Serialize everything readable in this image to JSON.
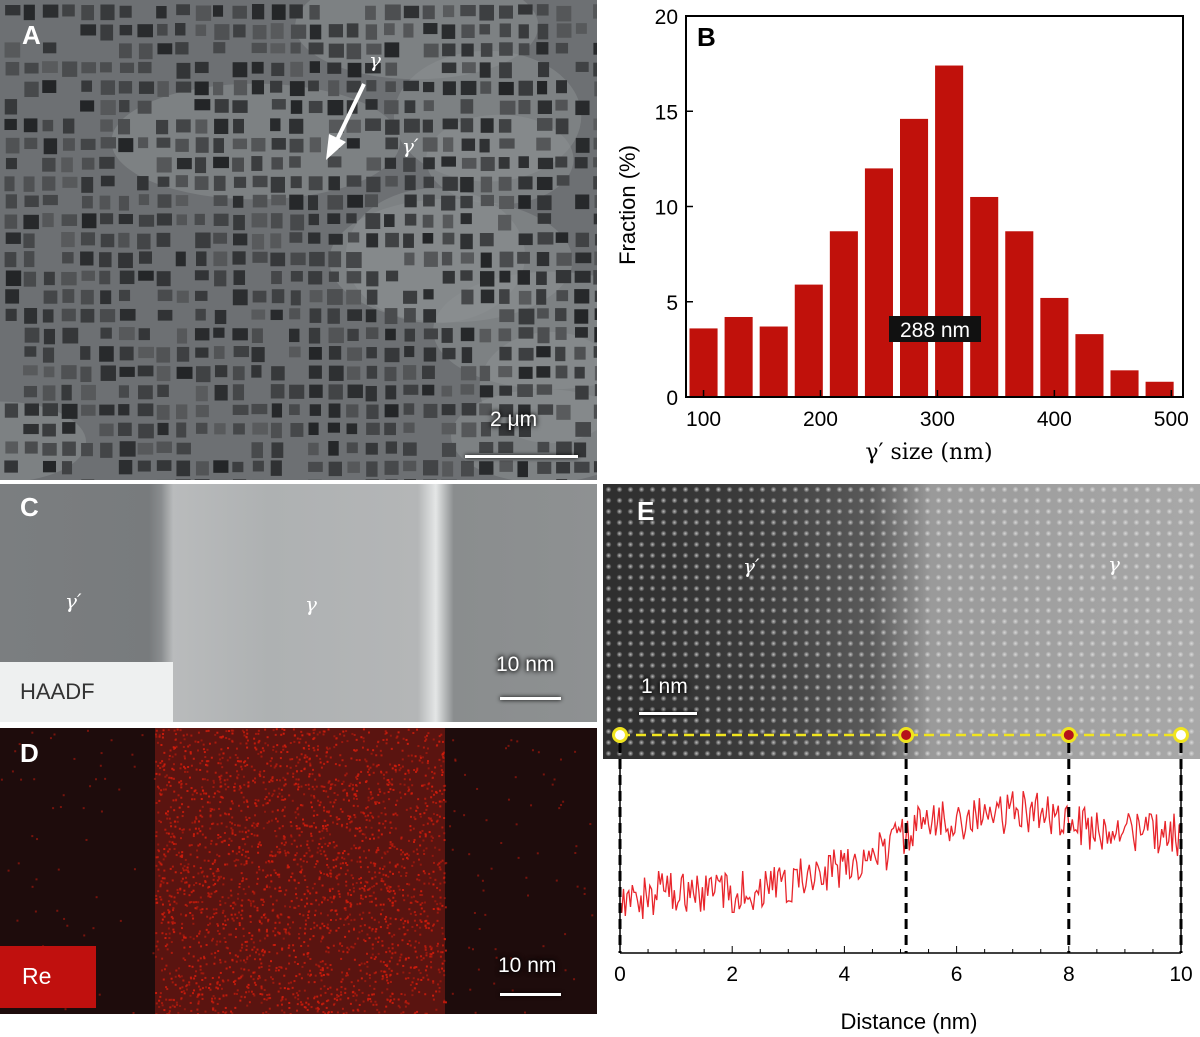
{
  "panels": {
    "a": {
      "label": "A",
      "gamma": "γ",
      "gamma_prime": "γ′",
      "scale": "2 μm"
    },
    "b": {
      "label": "B"
    },
    "c": {
      "label": "C",
      "gamma": "γ",
      "gamma_prime": "γ′",
      "mode": "HAADF",
      "scale": "10 nm"
    },
    "d": {
      "label": "D",
      "element": "Re",
      "scale": "10 nm",
      "map_color": "#d01c0c"
    },
    "e": {
      "label": "E",
      "gamma": "γ",
      "gamma_prime": "γ′",
      "scale": "1 nm"
    }
  },
  "chart_data": [
    {
      "type": "bar",
      "panel": "B",
      "xlabel": "γ′ size (nm)",
      "ylabel": "Fraction (%)",
      "annotation": "288 nm",
      "xlim": [
        85,
        510
      ],
      "ylim": [
        0,
        20
      ],
      "xticks": [
        100,
        200,
        300,
        400,
        500
      ],
      "yticks": [
        0,
        5,
        10,
        15,
        20
      ],
      "bar_width": 24,
      "color": "#c0110b",
      "x": [
        100,
        130,
        160,
        190,
        220,
        250,
        280,
        310,
        340,
        370,
        400,
        430,
        460,
        490
      ],
      "values": [
        3.6,
        4.2,
        3.7,
        5.9,
        8.7,
        12.0,
        14.6,
        17.4,
        10.5,
        8.7,
        5.2,
        3.3,
        1.4,
        0.8
      ]
    },
    {
      "type": "line",
      "panel": "E",
      "xlabel": "Distance (nm)",
      "xlim": [
        0,
        10
      ],
      "xticks": [
        0,
        2,
        4,
        6,
        8,
        10
      ],
      "markers_x": [
        0,
        5.1,
        8.0,
        10
      ],
      "color": "#e8252b",
      "x": [
        0,
        0.25,
        0.5,
        0.75,
        1.0,
        1.25,
        1.5,
        1.75,
        2.0,
        2.25,
        2.5,
        2.75,
        3.0,
        3.25,
        3.5,
        3.75,
        4.0,
        4.25,
        4.5,
        4.75,
        5.0,
        5.25,
        5.5,
        5.75,
        6.0,
        6.25,
        6.5,
        6.75,
        7.0,
        7.25,
        7.5,
        7.75,
        8.0,
        8.25,
        8.5,
        8.75,
        9.0,
        9.25,
        9.5,
        9.75,
        10.0
      ],
      "y": [
        0.22,
        0.3,
        0.25,
        0.33,
        0.28,
        0.31,
        0.27,
        0.36,
        0.3,
        0.32,
        0.29,
        0.35,
        0.37,
        0.4,
        0.38,
        0.44,
        0.46,
        0.5,
        0.55,
        0.58,
        0.66,
        0.72,
        0.74,
        0.76,
        0.79,
        0.78,
        0.81,
        0.8,
        0.83,
        0.82,
        0.85,
        0.8,
        0.77,
        0.72,
        0.7,
        0.74,
        0.69,
        0.71,
        0.67,
        0.7,
        0.66
      ]
    }
  ]
}
